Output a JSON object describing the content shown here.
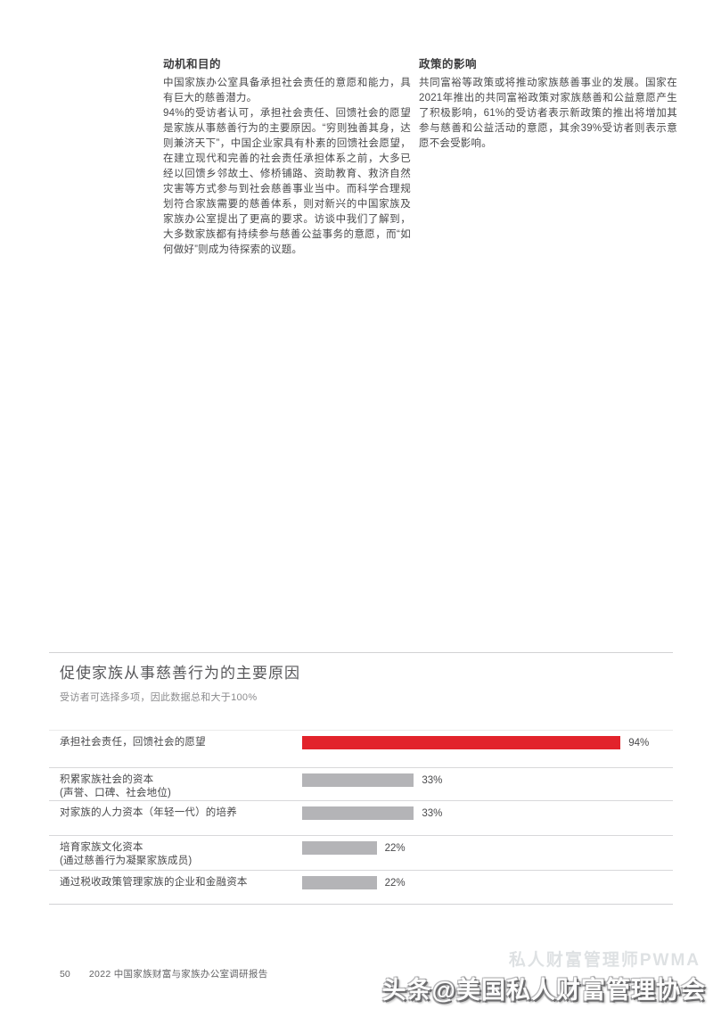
{
  "document": {
    "columns": [
      {
        "heading": "动机和目的",
        "paragraphs": [
          "中国家族办公室具备承担社会责任的意愿和能力，具有巨大的慈善潜力。",
          "94%的受访者认可，承担社会责任、回馈社会的愿望是家族从事慈善行为的主要原因。“穷则独善其身，达则兼济天下”，中国企业家具有朴素的回馈社会愿望，在建立现代和完善的社会责任承担体系之前，大多已经以回馈乡邻故土、修桥铺路、资助教育、救济自然灾害等方式参与到社会慈善事业当中。而科学合理规划符合家族需要的慈善体系，则对新兴的中国家族及家族办公室提出了更高的要求。访谈中我们了解到，大多数家族都有持续参与慈善公益事务的意愿，而“如何做好”则成为待探索的议题。"
        ]
      },
      {
        "heading": "政策的影响",
        "paragraphs": [
          "共同富裕等政策或将推动家族慈善事业的发展。国家在2021年推出的共同富裕政策对家族慈善和公益意愿产生了积极影响，61%的受访者表示新政策的推出将增加其参与慈善和公益活动的意愿，其余39%受访者则表示意愿不会受影响。"
        ]
      }
    ]
  },
  "chart": {
    "title": "促使家族从事慈善行为的主要原因",
    "subtitle": "受访者可选择多项，因此数据总和大于100%",
    "rows": [
      {
        "label": "承担社会责任，回馈社会的愿望",
        "sub": "",
        "value": 94,
        "value_label": "94%",
        "color": "#e2232b"
      },
      {
        "label": "积累家族社会的资本",
        "sub": "(声誉、口碑、社会地位)",
        "value": 33,
        "value_label": "33%",
        "color": "#b4b4b7"
      },
      {
        "label": "对家族的人力资本（年轻一代）的培养",
        "sub": "",
        "value": 33,
        "value_label": "33%",
        "color": "#b4b4b7"
      },
      {
        "label": "培育家族文化资本",
        "sub": "(通过慈善行为凝聚家族成员)",
        "value": 22,
        "value_label": "22%",
        "color": "#b4b4b7"
      },
      {
        "label": "通过税收政策管理家族的企业和金融资本",
        "sub": "",
        "value": 22,
        "value_label": "22%",
        "color": "#b4b4b7"
      }
    ]
  },
  "chart_data": {
    "type": "bar",
    "orientation": "horizontal",
    "title": "促使家族从事慈善行为的主要原因",
    "subtitle": "受访者可选择多项，因此数据总和大于100%",
    "categories": [
      "承担社会责任，回馈社会的愿望",
      "积累家族社会的资本（声誉、口碑、社会地位）",
      "对家族的人力资本（年轻一代）的培养",
      "培育家族文化资本（通过慈善行为凝聚家族成员）",
      "通过税收政策管理家族的企业和金融资本"
    ],
    "values": [
      94,
      33,
      33,
      22,
      22
    ],
    "value_labels": [
      "94%",
      "33%",
      "33%",
      "22%",
      "22%"
    ],
    "unit": "%",
    "xlim": [
      0,
      100
    ],
    "highlight_color": "#e2232b",
    "default_bar_color": "#b4b4b7",
    "legend": false,
    "grid": false
  },
  "footer": {
    "page_number": "50",
    "report_title": "2022 中国家族财富与家族办公室调研报告"
  },
  "watermark": {
    "main": "头条@美国私人财富管理协会",
    "faint": "私人财富管理师PWMA"
  }
}
